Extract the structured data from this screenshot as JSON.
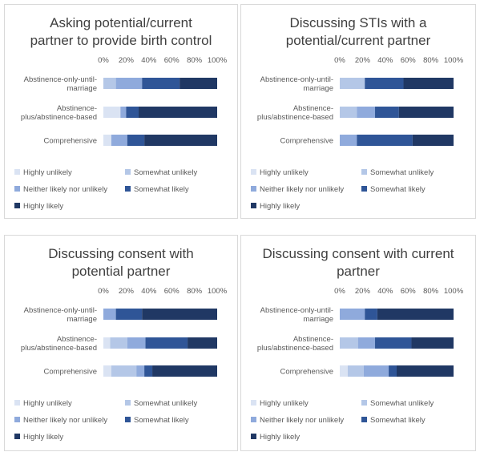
{
  "colors": [
    "#dae3f3",
    "#b4c7e7",
    "#8faadc",
    "#2f5597",
    "#203864"
  ],
  "chart_data": [
    {
      "type": "bar",
      "orientation": "horizontal-stacked-100",
      "title": "Asking potential/current partner to provide birth control",
      "title_lines": [
        "Asking potential/current",
        "partner to provide birth control"
      ],
      "xlim": [
        0,
        100
      ],
      "ticks": [
        "0%",
        "20%",
        "40%",
        "60%",
        "80%",
        "100%"
      ],
      "categories": [
        [
          "Abstinence-only-until-",
          "marriage"
        ],
        [
          "Abstinence-",
          "plus/abstinence-based"
        ],
        [
          "Comprehensive"
        ]
      ],
      "series": [
        {
          "name": "Highly unlikely",
          "values": [
            0,
            15,
            7
          ]
        },
        {
          "name": "Somewhat unlikely",
          "values": [
            11,
            0,
            0
          ]
        },
        {
          "name": "Neither likely nor unlikely",
          "values": [
            23,
            5,
            14
          ]
        },
        {
          "name": "Somewhat likely",
          "values": [
            33,
            11,
            15
          ]
        },
        {
          "name": "Highly likely",
          "values": [
            33,
            69,
            64
          ]
        }
      ],
      "legend_position": "bottom"
    },
    {
      "type": "bar",
      "orientation": "horizontal-stacked-100",
      "title": "Discussing STIs with a potential/current partner",
      "title_lines": [
        "Discussing STIs with a",
        "potential/current partner"
      ],
      "xlim": [
        0,
        100
      ],
      "ticks": [
        "0%",
        "20%",
        "40%",
        "60%",
        "80%",
        "100%"
      ],
      "categories": [
        [
          "Abstinence-only-until-",
          "marriage"
        ],
        [
          "Abstinence-",
          "plus/abstinence-based"
        ],
        [
          "Comprehensive"
        ]
      ],
      "series": [
        {
          "name": "Highly unlikely",
          "values": [
            0,
            0,
            0
          ]
        },
        {
          "name": "Somewhat unlikely",
          "values": [
            22,
            15,
            0
          ]
        },
        {
          "name": "Neither likely nor unlikely",
          "values": [
            0,
            16,
            15
          ]
        },
        {
          "name": "Somewhat likely",
          "values": [
            34,
            21,
            49
          ]
        },
        {
          "name": "Highly likely",
          "values": [
            44,
            48,
            36
          ]
        }
      ],
      "legend_position": "bottom"
    },
    {
      "type": "bar",
      "orientation": "horizontal-stacked-100",
      "title": "Discussing consent with potential partner",
      "title_lines": [
        "Discussing consent with",
        "potential partner"
      ],
      "xlim": [
        0,
        100
      ],
      "ticks": [
        "0%",
        "20%",
        "40%",
        "60%",
        "80%",
        "100%"
      ],
      "categories": [
        [
          "Abstinence-only-until-",
          "marriage"
        ],
        [
          "Abstinence-",
          "plus/abstinence-based"
        ],
        [
          "Comprehensive"
        ]
      ],
      "series": [
        {
          "name": "Highly unlikely",
          "values": [
            0,
            6,
            7
          ]
        },
        {
          "name": "Somewhat unlikely",
          "values": [
            0,
            15,
            22
          ]
        },
        {
          "name": "Neither likely nor unlikely",
          "values": [
            11,
            16,
            7
          ]
        },
        {
          "name": "Somewhat likely",
          "values": [
            23,
            37,
            7
          ]
        },
        {
          "name": "Highly likely",
          "values": [
            66,
            26,
            57
          ]
        }
      ],
      "legend_position": "bottom"
    },
    {
      "type": "bar",
      "orientation": "horizontal-stacked-100",
      "title": "Discussing consent with current partner",
      "title_lines": [
        "Discussing consent with current",
        "partner"
      ],
      "xlim": [
        0,
        100
      ],
      "ticks": [
        "0%",
        "20%",
        "40%",
        "60%",
        "80%",
        "100%"
      ],
      "categories": [
        [
          "Abstinence-only-until-",
          "marriage"
        ],
        [
          "Abstinence-",
          "plus/abstinence-based"
        ],
        [
          "Comprehensive"
        ]
      ],
      "series": [
        {
          "name": "Highly unlikely",
          "values": [
            0,
            0,
            7
          ]
        },
        {
          "name": "Somewhat unlikely",
          "values": [
            0,
            16,
            14
          ]
        },
        {
          "name": "Neither likely nor unlikely",
          "values": [
            22,
            15,
            22
          ]
        },
        {
          "name": "Somewhat likely",
          "values": [
            11,
            32,
            7
          ]
        },
        {
          "name": "Highly likely",
          "values": [
            67,
            37,
            50
          ]
        }
      ],
      "legend_position": "bottom"
    }
  ]
}
